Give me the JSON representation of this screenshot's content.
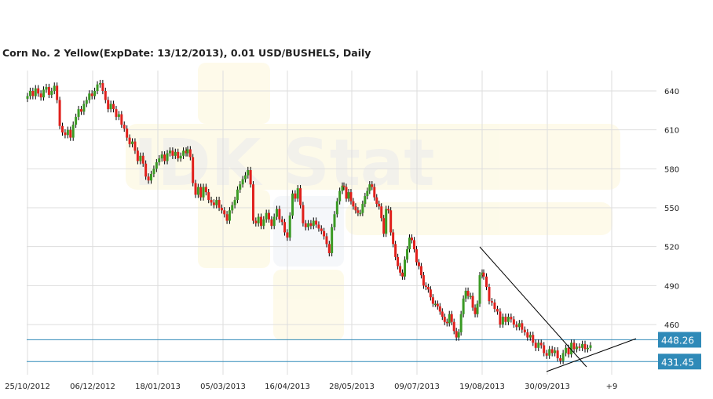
{
  "chart_data": {
    "type": "candlestick",
    "title": "Corn  No. 2 Yellow(ExpDate: 13/12/2013), 0.01 USD/BUSHELS, Daily",
    "watermark": "IDK Stat",
    "y_ticks": [
      640,
      610,
      580,
      550,
      520,
      490,
      460
    ],
    "ylim": [
      424,
      654
    ],
    "x_tick_labels": [
      "25/10/2012",
      "06/12/2012",
      "18/01/2013",
      "05/03/2013",
      "16/04/2013",
      "28/05/2013",
      "09/07/2013",
      "19/08/2013",
      "30/09/2013",
      "+9"
    ],
    "grid": true,
    "colors": {
      "up": "#3a9a24",
      "down": "#e0201c",
      "wick": "#000000",
      "level_line": "#2f8ab8",
      "tag_bg": "#2f8ab8",
      "grid": "#dddddd"
    },
    "horizontal_levels": [
      {
        "label": "448.26",
        "value": 448.26
      },
      {
        "label": "431.45",
        "value": 431.45
      }
    ],
    "trendlines": [
      {
        "name": "resistance",
        "points": [
          [
            0,
            519
          ],
          [
            78,
            431
          ]
        ]
      },
      {
        "name": "support",
        "points": [
          [
            0,
            430
          ],
          [
            62,
            450
          ]
        ]
      }
    ],
    "series": [
      {
        "segment": "25/10/2012-12/02/2013",
        "closes": [
          636,
          640,
          636,
          642,
          638,
          635,
          641,
          643,
          637,
          640,
          644,
          633,
          613,
          608,
          606,
          610,
          604,
          614,
          620,
          626,
          624,
          630,
          633,
          638,
          636,
          640,
          645,
          646,
          640,
          633,
          626,
          630,
          626,
          620,
          622,
          614,
          611,
          604,
          599,
          601,
          594,
          586,
          590,
          584,
          574,
          571,
          576,
          580,
          585,
          588,
          591,
          586,
          592,
          594,
          590,
          593,
          588,
          590,
          594,
          592
        ]
      },
      {
        "segment": "13/02/2013-10/05/2013",
        "closes": [
          595,
          589,
          569,
          560,
          566,
          558,
          566,
          562,
          556,
          554,
          552,
          556,
          550,
          548,
          545,
          540,
          548,
          552,
          556,
          564,
          568,
          572,
          575,
          579,
          568,
          540,
          538,
          543,
          536,
          541,
          546,
          541,
          536,
          543,
          549,
          541,
          539,
          531,
          527,
          544,
          561,
          557,
          565,
          552,
          538,
          535,
          538,
          536,
          540,
          537,
          534,
          532,
          528,
          522,
          515,
          535,
          545,
          555,
          563,
          567
        ]
      },
      {
        "segment": "13/05/2013-07/08/2013",
        "closes": [
          566,
          557,
          562,
          555,
          551,
          548,
          546,
          546,
          553,
          559,
          563,
          568,
          566,
          558,
          553,
          551,
          542,
          530,
          549,
          548,
          531,
          522,
          512,
          505,
          500,
          497,
          510,
          518,
          527,
          525,
          518,
          508,
          505,
          498,
          490,
          489,
          487,
          481,
          476,
          476,
          474,
          470,
          466,
          462,
          461,
          468,
          462,
          455,
          450,
          454,
          468,
          480,
          486,
          482,
          482,
          473,
          468,
          476,
          498,
          500
        ]
      },
      {
        "segment": "08/08/2013-11/10/2013",
        "closes": [
          497,
          489,
          478,
          477,
          472,
          470,
          460,
          466,
          462,
          466,
          464,
          460,
          458,
          461,
          456,
          454,
          450,
          452,
          446,
          442,
          446,
          444,
          438,
          436,
          441,
          438,
          440,
          434,
          432,
          438,
          442,
          437,
          446,
          441,
          443,
          442,
          445,
          441,
          442,
          444
        ]
      }
    ]
  }
}
